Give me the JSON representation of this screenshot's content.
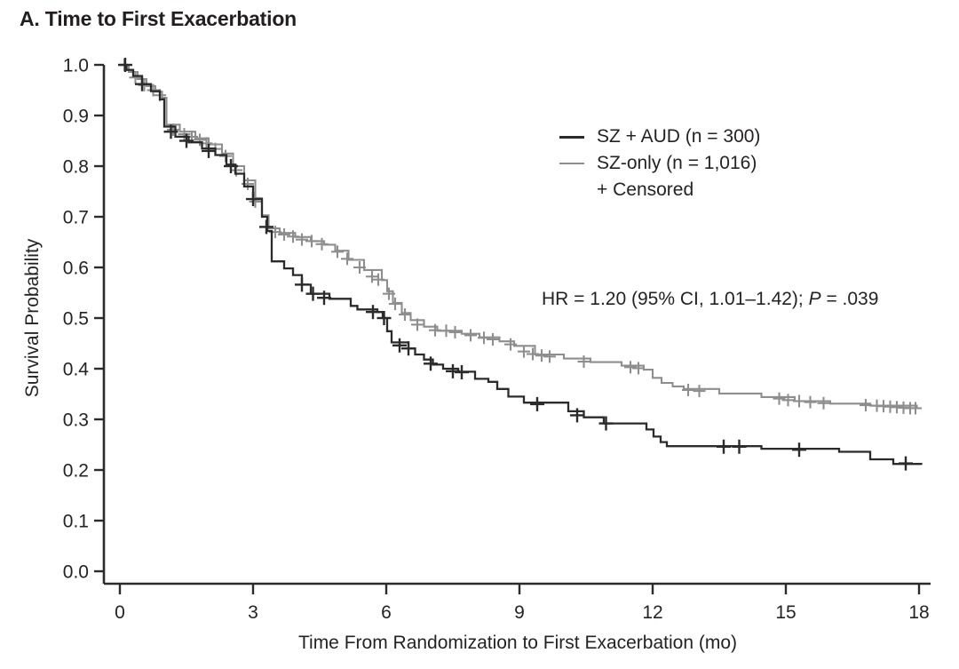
{
  "chart_data": {
    "type": "line",
    "subtype": "kaplan-meier-step-survival",
    "title": "A. Time to First Exacerbation",
    "xlabel": "Time From Randomization to First Exacerbation (mo)",
    "ylabel": "Survival Probability",
    "xlim": [
      0,
      18
    ],
    "ylim": [
      0.0,
      1.0
    ],
    "x_ticks": [
      0,
      3,
      6,
      9,
      12,
      15,
      18
    ],
    "y_ticks": [
      1.0,
      0.9,
      0.8,
      0.7,
      0.6,
      0.5,
      0.4,
      0.3,
      0.2,
      0.1,
      0.0
    ],
    "grid": false,
    "legend_position": "upper-right-inside",
    "annotation": {
      "prefix": "HR = 1.20 (95% CI, 1.01–1.42); ",
      "italic": "P",
      "suffix": " = .039"
    },
    "legend": {
      "items": [
        {
          "label": "SZ + AUD (n = 300)",
          "swatch": "line",
          "color": "#2b2b2b"
        },
        {
          "label": "SZ-only (n = 1,016)",
          "swatch": "line",
          "color": "#8e8e8e"
        },
        {
          "label": "+ Censored",
          "swatch": "none"
        }
      ]
    },
    "series": [
      {
        "name": "SZ-only (n = 1,016)",
        "color": "#8e8e8e",
        "line_width": 2.1,
        "steps": [
          [
            0,
            1.0
          ],
          [
            0.2,
            0.986
          ],
          [
            0.4,
            0.972
          ],
          [
            0.6,
            0.958
          ],
          [
            0.8,
            0.947
          ],
          [
            0.95,
            0.935
          ],
          [
            1.05,
            0.882
          ],
          [
            1.35,
            0.868
          ],
          [
            1.7,
            0.855
          ],
          [
            2.0,
            0.843
          ],
          [
            2.3,
            0.825
          ],
          [
            2.55,
            0.8
          ],
          [
            2.8,
            0.772
          ],
          [
            3.05,
            0.737
          ],
          [
            3.2,
            0.703
          ],
          [
            3.35,
            0.677
          ],
          [
            3.6,
            0.668
          ],
          [
            3.95,
            0.66
          ],
          [
            4.3,
            0.652
          ],
          [
            4.6,
            0.645
          ],
          [
            4.85,
            0.633
          ],
          [
            5.15,
            0.615
          ],
          [
            5.5,
            0.595
          ],
          [
            5.9,
            0.575
          ],
          [
            6.02,
            0.553
          ],
          [
            6.15,
            0.53
          ],
          [
            6.35,
            0.51
          ],
          [
            6.55,
            0.496
          ],
          [
            6.85,
            0.483
          ],
          [
            7.15,
            0.475
          ],
          [
            7.7,
            0.469
          ],
          [
            8.1,
            0.462
          ],
          [
            8.55,
            0.454
          ],
          [
            8.88,
            0.445
          ],
          [
            9.35,
            0.428
          ],
          [
            10.0,
            0.42
          ],
          [
            10.6,
            0.413
          ],
          [
            11.3,
            0.406
          ],
          [
            11.8,
            0.398
          ],
          [
            12.0,
            0.382
          ],
          [
            12.2,
            0.372
          ],
          [
            12.45,
            0.365
          ],
          [
            12.7,
            0.36
          ],
          [
            13.5,
            0.351
          ],
          [
            14.45,
            0.344
          ],
          [
            15.2,
            0.336
          ],
          [
            16.0,
            0.331
          ],
          [
            16.9,
            0.327
          ],
          [
            17.95,
            0.322
          ]
        ],
        "censors": [
          [
            0.1,
            1.0
          ],
          [
            0.35,
            0.975
          ],
          [
            0.55,
            0.96
          ],
          [
            0.75,
            0.95
          ],
          [
            0.9,
            0.94
          ],
          [
            1.2,
            0.872
          ],
          [
            1.45,
            0.863
          ],
          [
            1.62,
            0.858
          ],
          [
            1.8,
            0.852
          ],
          [
            1.95,
            0.845
          ],
          [
            2.15,
            0.834
          ],
          [
            2.38,
            0.82
          ],
          [
            2.62,
            0.792
          ],
          [
            2.88,
            0.765
          ],
          [
            3.05,
            0.73
          ],
          [
            3.5,
            0.67
          ],
          [
            3.7,
            0.665
          ],
          [
            3.9,
            0.661
          ],
          [
            4.1,
            0.655
          ],
          [
            4.32,
            0.652
          ],
          [
            4.55,
            0.646
          ],
          [
            4.9,
            0.631
          ],
          [
            5.12,
            0.617
          ],
          [
            5.4,
            0.6
          ],
          [
            5.68,
            0.582
          ],
          [
            5.82,
            0.576
          ],
          [
            6.06,
            0.548
          ],
          [
            6.2,
            0.528
          ],
          [
            6.42,
            0.507
          ],
          [
            6.7,
            0.487
          ],
          [
            7.1,
            0.476
          ],
          [
            7.35,
            0.475
          ],
          [
            7.55,
            0.472
          ],
          [
            7.9,
            0.466
          ],
          [
            8.2,
            0.461
          ],
          [
            8.4,
            0.458
          ],
          [
            8.8,
            0.448
          ],
          [
            9.1,
            0.434
          ],
          [
            9.3,
            0.429
          ],
          [
            9.5,
            0.426
          ],
          [
            9.68,
            0.424
          ],
          [
            10.45,
            0.414
          ],
          [
            11.5,
            0.403
          ],
          [
            11.68,
            0.401
          ],
          [
            12.8,
            0.358
          ],
          [
            13.05,
            0.356
          ],
          [
            14.85,
            0.341
          ],
          [
            15.05,
            0.338
          ],
          [
            15.3,
            0.336
          ],
          [
            15.55,
            0.334
          ],
          [
            15.85,
            0.332
          ],
          [
            16.8,
            0.328
          ],
          [
            17.05,
            0.327
          ],
          [
            17.2,
            0.326
          ],
          [
            17.35,
            0.325
          ],
          [
            17.5,
            0.324
          ],
          [
            17.65,
            0.323
          ],
          [
            17.8,
            0.322
          ],
          [
            17.92,
            0.322
          ]
        ]
      },
      {
        "name": "SZ + AUD (n = 300)",
        "color": "#2b2b2b",
        "line_width": 2.3,
        "steps": [
          [
            0,
            1.0
          ],
          [
            0.15,
            0.99
          ],
          [
            0.3,
            0.978
          ],
          [
            0.5,
            0.962
          ],
          [
            0.7,
            0.948
          ],
          [
            0.9,
            0.932
          ],
          [
            1.0,
            0.878
          ],
          [
            1.25,
            0.858
          ],
          [
            1.55,
            0.847
          ],
          [
            1.85,
            0.835
          ],
          [
            2.15,
            0.822
          ],
          [
            2.4,
            0.803
          ],
          [
            2.6,
            0.785
          ],
          [
            2.8,
            0.76
          ],
          [
            3.0,
            0.735
          ],
          [
            3.2,
            0.7
          ],
          [
            3.32,
            0.672
          ],
          [
            3.42,
            0.612
          ],
          [
            3.7,
            0.598
          ],
          [
            3.9,
            0.585
          ],
          [
            4.1,
            0.566
          ],
          [
            4.3,
            0.548
          ],
          [
            4.72,
            0.538
          ],
          [
            5.2,
            0.524
          ],
          [
            5.35,
            0.517
          ],
          [
            5.8,
            0.512
          ],
          [
            5.92,
            0.5
          ],
          [
            6.02,
            0.474
          ],
          [
            6.12,
            0.452
          ],
          [
            6.5,
            0.44
          ],
          [
            6.65,
            0.428
          ],
          [
            6.85,
            0.418
          ],
          [
            7.05,
            0.408
          ],
          [
            7.28,
            0.4
          ],
          [
            7.62,
            0.394
          ],
          [
            8.0,
            0.38
          ],
          [
            8.3,
            0.374
          ],
          [
            8.5,
            0.36
          ],
          [
            8.75,
            0.345
          ],
          [
            9.1,
            0.333
          ],
          [
            10.1,
            0.316
          ],
          [
            10.45,
            0.304
          ],
          [
            10.9,
            0.292
          ],
          [
            11.86,
            0.28
          ],
          [
            12.02,
            0.266
          ],
          [
            12.18,
            0.255
          ],
          [
            12.32,
            0.247
          ],
          [
            14.45,
            0.242
          ],
          [
            16.2,
            0.236
          ],
          [
            16.9,
            0.221
          ],
          [
            17.42,
            0.212
          ],
          [
            18.05,
            0.21
          ]
        ],
        "censors": [
          [
            0.12,
            1.0
          ],
          [
            0.5,
            0.962
          ],
          [
            1.15,
            0.868
          ],
          [
            1.5,
            0.85
          ],
          [
            2.0,
            0.83
          ],
          [
            2.5,
            0.8
          ],
          [
            3.0,
            0.735
          ],
          [
            3.3,
            0.68
          ],
          [
            4.1,
            0.566
          ],
          [
            4.35,
            0.548
          ],
          [
            4.6,
            0.54
          ],
          [
            5.7,
            0.512
          ],
          [
            5.95,
            0.5
          ],
          [
            6.3,
            0.446
          ],
          [
            6.5,
            0.44
          ],
          [
            7.0,
            0.41
          ],
          [
            7.5,
            0.395
          ],
          [
            7.7,
            0.393
          ],
          [
            9.4,
            0.33
          ],
          [
            10.3,
            0.308
          ],
          [
            10.95,
            0.292
          ],
          [
            13.6,
            0.246
          ],
          [
            13.95,
            0.246
          ],
          [
            15.3,
            0.24
          ],
          [
            17.7,
            0.213
          ]
        ]
      }
    ]
  }
}
